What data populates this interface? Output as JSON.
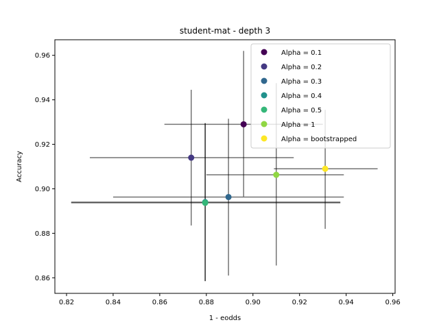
{
  "chart_data": {
    "type": "scatter",
    "title": "student-mat - depth 3",
    "xlabel": "1 - eodds",
    "ylabel": "Accuracy",
    "xlim": [
      0.815,
      0.961
    ],
    "ylim": [
      0.853,
      0.967
    ],
    "xticks": [
      "0.82",
      "0.84",
      "0.86",
      "0.88",
      "0.90",
      "0.92",
      "0.94",
      "0.96"
    ],
    "yticks": [
      "0.86",
      "0.88",
      "0.90",
      "0.92",
      "0.94",
      "0.96"
    ],
    "grid": false,
    "legend_position": "top-right",
    "series": [
      {
        "name": "Alpha = 0.1",
        "color": "#440154",
        "x": 0.896,
        "y": 0.929,
        "xerr": [
          0.862,
          0.93
        ],
        "yerr": [
          0.8965,
          0.962
        ]
      },
      {
        "name": "Alpha = 0.2",
        "color": "#443983",
        "x": 0.8735,
        "y": 0.914,
        "xerr": [
          0.83,
          0.9175
        ],
        "yerr": [
          0.8835,
          0.9445
        ]
      },
      {
        "name": "Alpha = 0.3",
        "color": "#31688e",
        "x": 0.8895,
        "y": 0.8963,
        "xerr": [
          0.84,
          0.939
        ],
        "yerr": [
          0.861,
          0.9315
        ]
      },
      {
        "name": "Alpha = 0.4",
        "color": "#21918c",
        "x": 0.8795,
        "y": 0.894,
        "xerr": [
          0.822,
          0.9375
        ],
        "yerr": [
          0.8585,
          0.9295
        ]
      },
      {
        "name": "Alpha = 0.5",
        "color": "#35b779",
        "x": 0.8795,
        "y": 0.8937,
        "xerr": [
          0.822,
          0.9375
        ],
        "yerr": [
          0.8585,
          0.9295
        ]
      },
      {
        "name": "Alpha = 1",
        "color": "#90d743",
        "x": 0.91,
        "y": 0.9063,
        "xerr": [
          0.88,
          0.939
        ],
        "yerr": [
          0.8655,
          0.9475
        ]
      },
      {
        "name": "Alpha = bootstrapped",
        "color": "#fde725",
        "x": 0.931,
        "y": 0.909,
        "xerr": [
          0.909,
          0.9535
        ],
        "yerr": [
          0.882,
          0.9355
        ]
      }
    ]
  }
}
